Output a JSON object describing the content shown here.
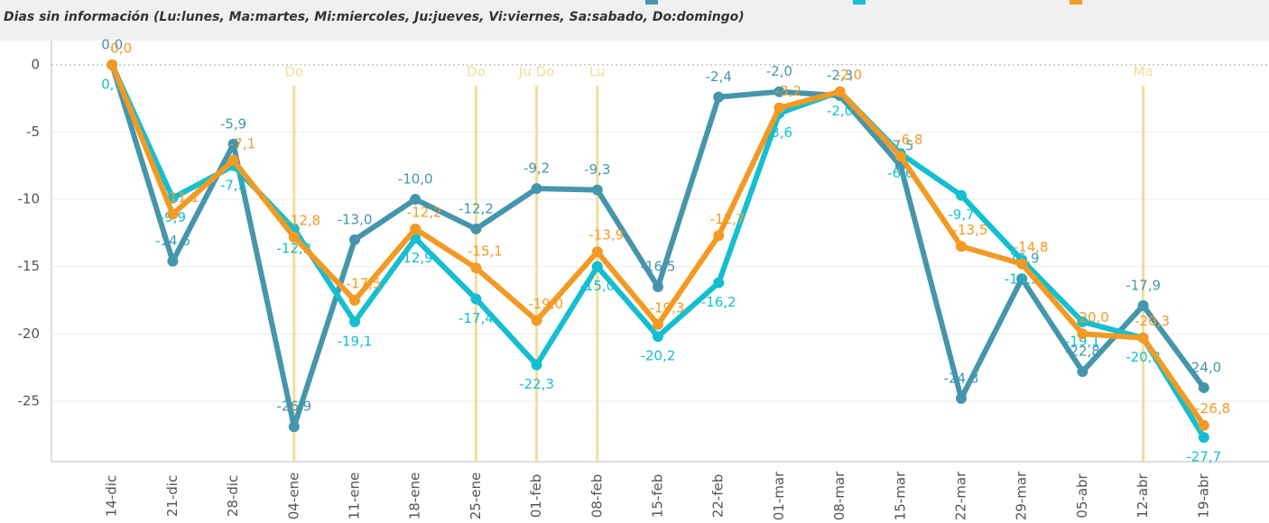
{
  "chart_data": {
    "type": "line",
    "subtitle": "Dias sin información (Lu:lunes, Ma:martes, Mi:miercoles, Ju:jueves, Vi:viernes, Sa:sabado, Do:domingo)",
    "categories": [
      "14-dic",
      "21-dic",
      "28-dic",
      "04-ene",
      "11-ene",
      "18-ene",
      "25-ene",
      "01-feb",
      "08-feb",
      "15-feb",
      "22-feb",
      "01-mar",
      "08-mar",
      "15-mar",
      "22-mar",
      "29-mar",
      "05-abr",
      "12-abr",
      "19-abr"
    ],
    "series": [
      {
        "color": "#4596ad",
        "values": [
          0,
          -14.6,
          -5.9,
          -26.9,
          -13.0,
          -10.0,
          -12.2,
          -9.2,
          -9.3,
          -16.5,
          -2.4,
          -2.0,
          -2.3,
          -7.5,
          -24.8,
          -15.9,
          -22.8,
          -17.9,
          -24.0
        ],
        "value_labels": [
          "0,0",
          "-14,6",
          "-5,9",
          "-26,9",
          "-13,0",
          "-10,0",
          "-12,2",
          "-9,2",
          "-9,3",
          "-16,5",
          "-2,4",
          "-2,0",
          "-2,3",
          "-7,5",
          "-24,8",
          "-15,9",
          "-22,8",
          "-17,9",
          "-24,0"
        ]
      },
      {
        "color": "#13bfd0",
        "values": [
          0,
          -9.9,
          -7.5,
          -12.2,
          -19.1,
          -12.9,
          -17.4,
          -22.3,
          -15.0,
          -20.2,
          -16.2,
          -3.6,
          -2.0,
          -6.6,
          -9.7,
          -14.5,
          -19.1,
          -20.3,
          -27.7
        ],
        "value_labels": [
          "0,0",
          "-9,9",
          "-7,5",
          "-12,2",
          "-19,1",
          "-12,9",
          "-17,4",
          "-22,3",
          "-15,0",
          "-20,2",
          "-16,2",
          "-3,6",
          "-2,0",
          "-6,6",
          "-9,7",
          "-14,5",
          "-19,1",
          "-20,3",
          "-27,7"
        ]
      },
      {
        "color": "#f39a24",
        "values": [
          0,
          -11.1,
          -7.1,
          -12.8,
          -17.5,
          -12.2,
          -15.1,
          -19.0,
          -13.9,
          -19.3,
          -12.7,
          -3.2,
          -2.0,
          -6.8,
          -13.5,
          -14.8,
          -20.0,
          -20.3,
          -26.8
        ],
        "value_labels": [
          "0,0",
          "-11,1",
          "-7,1",
          "-12,8",
          "-17,5",
          "-12,2",
          "-15,1",
          "-19,0",
          "-13,9",
          "-19,3",
          "-12,7",
          "-3,2",
          "-2,0",
          "-6,8",
          "-13,5",
          "-14,8",
          "-20,0",
          "-20,3",
          "-26,8"
        ]
      }
    ],
    "annotations": [
      {
        "category": "04-ene",
        "label": "Do"
      },
      {
        "category": "25-ene",
        "label": "Do"
      },
      {
        "category": "01-feb",
        "label": "Ju Do"
      },
      {
        "category": "08-feb",
        "label": "Lu"
      },
      {
        "category": "12-abr",
        "label": "Ma"
      }
    ],
    "annotation_color": "#f3dd99",
    "ylim": [
      -29.5,
      1.8
    ],
    "yticks": [
      0,
      -5,
      -10,
      -15,
      -20,
      -25
    ],
    "grid": true
  }
}
